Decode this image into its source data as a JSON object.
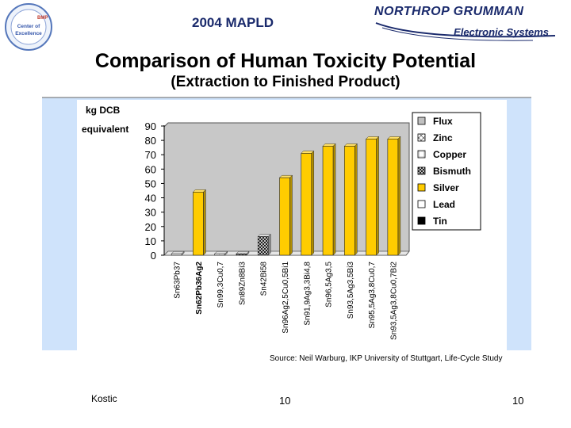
{
  "header": {
    "logo_left_text": [
      "BMP",
      "Center of",
      "Excellence"
    ],
    "conference": "2004 MAPLD",
    "company_name": "NORTHROP GRUMMAN",
    "company_division": "Electronic Systems"
  },
  "slide": {
    "title": "Comparison of Human Toxicity Potential",
    "subtitle": "(Extraction to Finished Product)"
  },
  "chart_data": {
    "type": "bar",
    "stacked": true,
    "ylabel": "kg DCB equivalent",
    "ylim": [
      0,
      90
    ],
    "yticks": [
      0,
      10,
      20,
      30,
      40,
      50,
      60,
      70,
      80,
      90
    ],
    "grid": false,
    "legend_position": "right",
    "categories": [
      "Sn63Pb37",
      "Sn62Pb36Ag2",
      "Sn99,3Cu0,7",
      "Sn89Zn8Bi3",
      "Sn42Bi58",
      "Sn96Ag2,5Cu0,5Bi1",
      "Sn91,9Ag3,3Bi4,8",
      "Sn96,5Ag3,5",
      "Sn93,5Ag3,5Bi3",
      "Sn95,5Ag3,8Cu0,7",
      "Sn93,5Ag3,8Cu0,7Bi2"
    ],
    "category_emphasis": [
      false,
      true,
      false,
      false,
      false,
      false,
      false,
      false,
      false,
      false,
      false
    ],
    "series": [
      {
        "name": "Flux",
        "color": "#c0c0c0",
        "values": [
          0,
          0,
          0,
          0,
          0,
          0,
          0,
          0,
          0,
          0,
          0
        ]
      },
      {
        "name": "Zinc",
        "color": "#ffffff",
        "values": [
          0,
          0,
          0,
          0,
          0,
          0,
          0,
          0,
          0,
          0,
          0
        ]
      },
      {
        "name": "Copper",
        "color": "#ffffff",
        "values": [
          0,
          0,
          1,
          0,
          0,
          0,
          0,
          0,
          0,
          0,
          0
        ]
      },
      {
        "name": "Bismuth",
        "color": "#dddddd",
        "values": [
          0,
          0,
          0,
          1,
          13,
          0,
          0,
          0,
          0,
          0,
          0
        ]
      },
      {
        "name": "Silver",
        "color": "#ffcc00",
        "values": [
          0,
          44,
          0,
          0,
          0,
          54,
          71,
          76,
          76,
          81,
          81
        ]
      },
      {
        "name": "Lead",
        "color": "#ffffff",
        "values": [
          1,
          0,
          0,
          0,
          0,
          0,
          0,
          0,
          0,
          0,
          0
        ]
      },
      {
        "name": "Tin",
        "color": "#000000",
        "values": [
          0,
          0,
          0,
          0,
          0,
          0,
          0,
          0,
          0,
          0,
          0
        ]
      }
    ]
  },
  "footer": {
    "source": "Source: Neil Warburg, IKP University of Stuttgart, Life-Cycle Study",
    "author": "Kostic",
    "page_center": "10",
    "page_right": "10"
  }
}
